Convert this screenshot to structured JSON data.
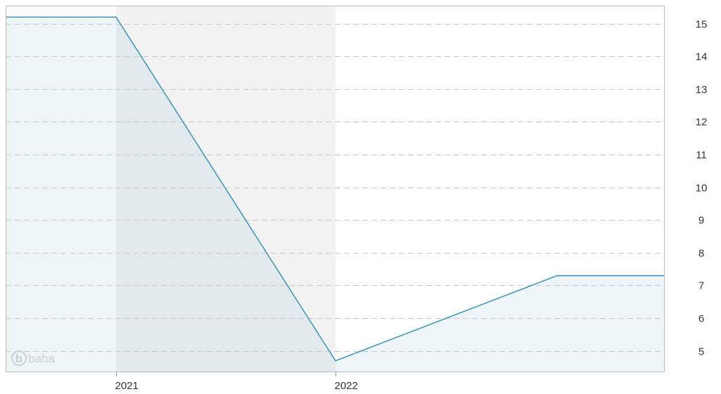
{
  "chart_data": {
    "type": "area",
    "title": "",
    "xlabel": "",
    "ylabel": "",
    "x_tick_labels": [
      "2021",
      "2022"
    ],
    "y_ticks": [
      5,
      6,
      7,
      8,
      9,
      10,
      11,
      12,
      13,
      14,
      15
    ],
    "ylim": [
      4.35,
      15.55
    ],
    "y_axis_position": "right",
    "grid": "horizontal dashed",
    "shaded_year_band": "2021",
    "series": [
      {
        "points": [
          {
            "x": "2020-07",
            "y": 15.2
          },
          {
            "x": "2021-01",
            "y": 15.2
          },
          {
            "x": "2022-01",
            "y": 4.7
          },
          {
            "x": "2023-01",
            "y": 7.3
          },
          {
            "x": "2023-06",
            "y": 7.3
          }
        ]
      }
    ],
    "colors": {
      "line": "#2e8fb5",
      "area_fill": "#eef5f8",
      "area_fill_in_band": "#e3eaed",
      "band": "#f2f2f2",
      "grid": "#c8c8c8",
      "border": "#bbbbbb"
    },
    "watermark": {
      "logo_icon": "baha-logo-icon",
      "text": "baha"
    }
  }
}
